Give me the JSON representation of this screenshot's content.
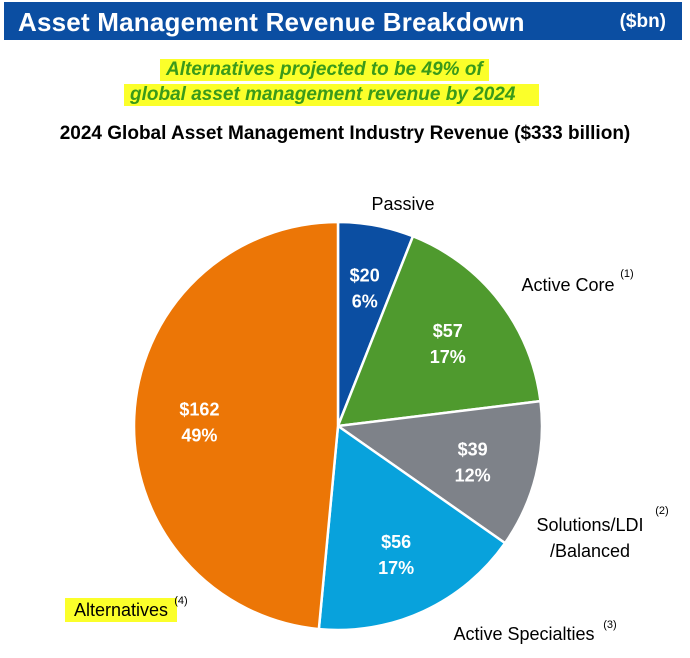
{
  "header": {
    "title": "Asset Management Revenue Breakdown",
    "unit": "($bn)"
  },
  "callout": {
    "line1": "Alternatives projected to be 49% of",
    "line2": "global asset management revenue by 2024"
  },
  "colors": {
    "header_bg": "#0b4ea2",
    "highlight": "#fbff2a",
    "callout_text": "#3a9a1a"
  },
  "chart_data": {
    "type": "pie",
    "title": "2024 Global Asset Management Industry Revenue ($333 billion)",
    "total": 333,
    "slices": [
      {
        "label": "Passive",
        "footnote": "",
        "value": 20,
        "value_label": "$20",
        "percent_label": "6%",
        "color": "#0b4ea2"
      },
      {
        "label": "Active Core",
        "footnote": "(1)",
        "value": 57,
        "value_label": "$57",
        "percent_label": "17%",
        "color": "#4f9a2e"
      },
      {
        "label": "Solutions/LDI /Balanced",
        "footnote": "(2)",
        "value": 39,
        "value_label": "$39",
        "percent_label": "12%",
        "color": "#7e8289"
      },
      {
        "label": "Active Specialties",
        "footnote": "(3)",
        "value": 56,
        "value_label": "$56",
        "percent_label": "17%",
        "color": "#08a2dc"
      },
      {
        "label": "Alternatives",
        "footnote": "(4)",
        "value": 162,
        "value_label": "$162",
        "percent_label": "49%",
        "color": "#ec7606",
        "highlight": true
      }
    ]
  }
}
